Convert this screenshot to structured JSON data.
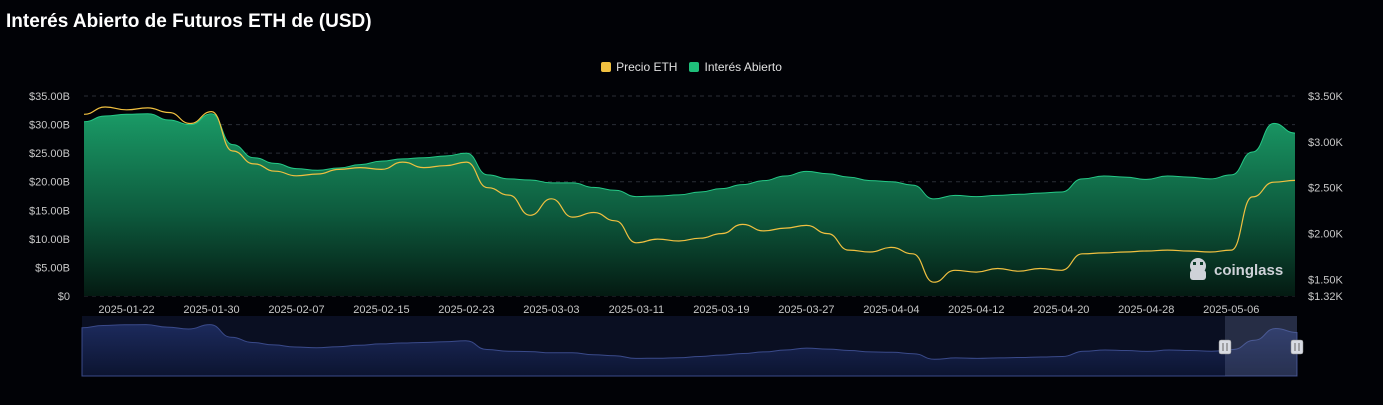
{
  "title": "Interés Abierto de Futuros ETH de (USD)",
  "watermark": "coinglass",
  "colors": {
    "price": "#f0c040",
    "oi": "#1fbf7a",
    "background": "#010206",
    "grid": "#2a2e36",
    "navigator": "#3a4a8a"
  },
  "chart_data": {
    "type": "area",
    "x": [
      "2025-01-18",
      "2025-01-20",
      "2025-01-22",
      "2025-01-24",
      "2025-01-26",
      "2025-01-28",
      "2025-01-30",
      "2025-02-01",
      "2025-02-03",
      "2025-02-05",
      "2025-02-07",
      "2025-02-09",
      "2025-02-11",
      "2025-02-13",
      "2025-02-15",
      "2025-02-17",
      "2025-02-19",
      "2025-02-21",
      "2025-02-23",
      "2025-02-25",
      "2025-02-27",
      "2025-03-01",
      "2025-03-03",
      "2025-03-05",
      "2025-03-07",
      "2025-03-09",
      "2025-03-11",
      "2025-03-13",
      "2025-03-15",
      "2025-03-17",
      "2025-03-19",
      "2025-03-21",
      "2025-03-23",
      "2025-03-25",
      "2025-03-27",
      "2025-03-29",
      "2025-03-31",
      "2025-04-02",
      "2025-04-04",
      "2025-04-06",
      "2025-04-08",
      "2025-04-10",
      "2025-04-12",
      "2025-04-14",
      "2025-04-16",
      "2025-04-18",
      "2025-04-20",
      "2025-04-22",
      "2025-04-24",
      "2025-04-26",
      "2025-04-28",
      "2025-04-30",
      "2025-05-02",
      "2025-05-04",
      "2025-05-06",
      "2025-05-08",
      "2025-05-10",
      "2025-05-12"
    ],
    "series": [
      {
        "name": "Precio ETH",
        "axis": "right",
        "values": [
          3300,
          3380,
          3350,
          3370,
          3320,
          3200,
          3330,
          2900,
          2760,
          2680,
          2630,
          2650,
          2700,
          2720,
          2700,
          2780,
          2720,
          2740,
          2780,
          2500,
          2420,
          2200,
          2380,
          2180,
          2230,
          2140,
          1900,
          1940,
          1920,
          1950,
          2000,
          2100,
          2030,
          2060,
          2090,
          2000,
          1820,
          1800,
          1850,
          1780,
          1470,
          1600,
          1580,
          1620,
          1590,
          1620,
          1600,
          1780,
          1790,
          1800,
          1810,
          1820,
          1810,
          1800,
          1820,
          2400,
          2560,
          2580
        ]
      },
      {
        "name": "Interés Abierto",
        "axis": "left",
        "values": [
          30.5,
          31.5,
          31.8,
          31.9,
          30.8,
          30.0,
          31.9,
          26.5,
          24.2,
          23.2,
          22.3,
          22.0,
          22.4,
          23.0,
          23.6,
          24.0,
          24.2,
          24.5,
          25.0,
          21.2,
          20.5,
          20.3,
          19.8,
          19.8,
          19.0,
          18.5,
          17.4,
          17.5,
          17.7,
          18.2,
          18.8,
          19.5,
          20.2,
          21.0,
          21.8,
          21.4,
          20.8,
          20.2,
          20.0,
          19.4,
          17.0,
          17.6,
          17.4,
          17.6,
          17.8,
          18.0,
          18.2,
          20.5,
          21.0,
          20.8,
          20.4,
          21.0,
          20.8,
          20.5,
          21.2,
          25.2,
          30.2,
          28.5
        ]
      }
    ],
    "x_ticks": [
      "2025-01-22",
      "2025-01-30",
      "2025-02-07",
      "2025-02-15",
      "2025-02-23",
      "2025-03-03",
      "2025-03-11",
      "2025-03-19",
      "2025-03-27",
      "2025-04-04",
      "2025-04-12",
      "2025-04-20",
      "2025-04-28",
      "2025-05-06"
    ],
    "y_left_ticks": [
      "$0",
      "$5.00B",
      "$10.00B",
      "$15.00B",
      "$20.00B",
      "$25.00B",
      "$30.00B",
      "$35.00B"
    ],
    "y_right_ticks": [
      "$1.32K",
      "$1.50K",
      "$2.00K",
      "$2.50K",
      "$3.00K",
      "$3.50K"
    ],
    "y_left_range": [
      0,
      35
    ],
    "y_right_range": [
      1320,
      3500
    ],
    "legend": "top-center",
    "grid": true
  }
}
